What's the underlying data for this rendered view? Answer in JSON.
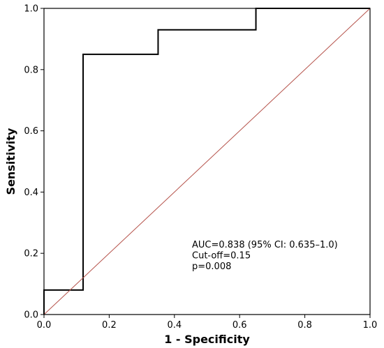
{
  "chart_data": {
    "type": "line",
    "title": "",
    "xlabel": "1 - Specificity",
    "ylabel": "Sensitivity",
    "xlim": [
      0,
      1
    ],
    "ylim": [
      0,
      1
    ],
    "grid": false,
    "x_ticks": [
      0.0,
      0.2,
      0.4,
      0.6,
      0.8,
      1.0
    ],
    "y_ticks": [
      0.0,
      0.2,
      0.4,
      0.6,
      0.8,
      1.0
    ],
    "x_tick_labels": [
      "0.0",
      "0.2",
      "0.4",
      "0.6",
      "0.8",
      "1.0"
    ],
    "y_tick_labels": [
      "0.0",
      "0.2",
      "0.4",
      "0.6",
      "0.8",
      "1.0"
    ],
    "series": [
      {
        "color": "#000000",
        "x": [
          0.0,
          0.0,
          0.12,
          0.12,
          0.35,
          0.35,
          0.65,
          0.65,
          1.0
        ],
        "y": [
          0.0,
          0.08,
          0.08,
          0.85,
          0.85,
          0.93,
          0.93,
          1.0,
          1.0
        ]
      },
      {
        "color": "#b5524a",
        "x": [
          0.0,
          1.0
        ],
        "y": [
          0.0,
          1.0
        ]
      }
    ],
    "annotations": [
      "AUC=0.838 (95% CI: 0.635–1.0)",
      "Cut-off=0.15",
      "p=0.008"
    ]
  }
}
